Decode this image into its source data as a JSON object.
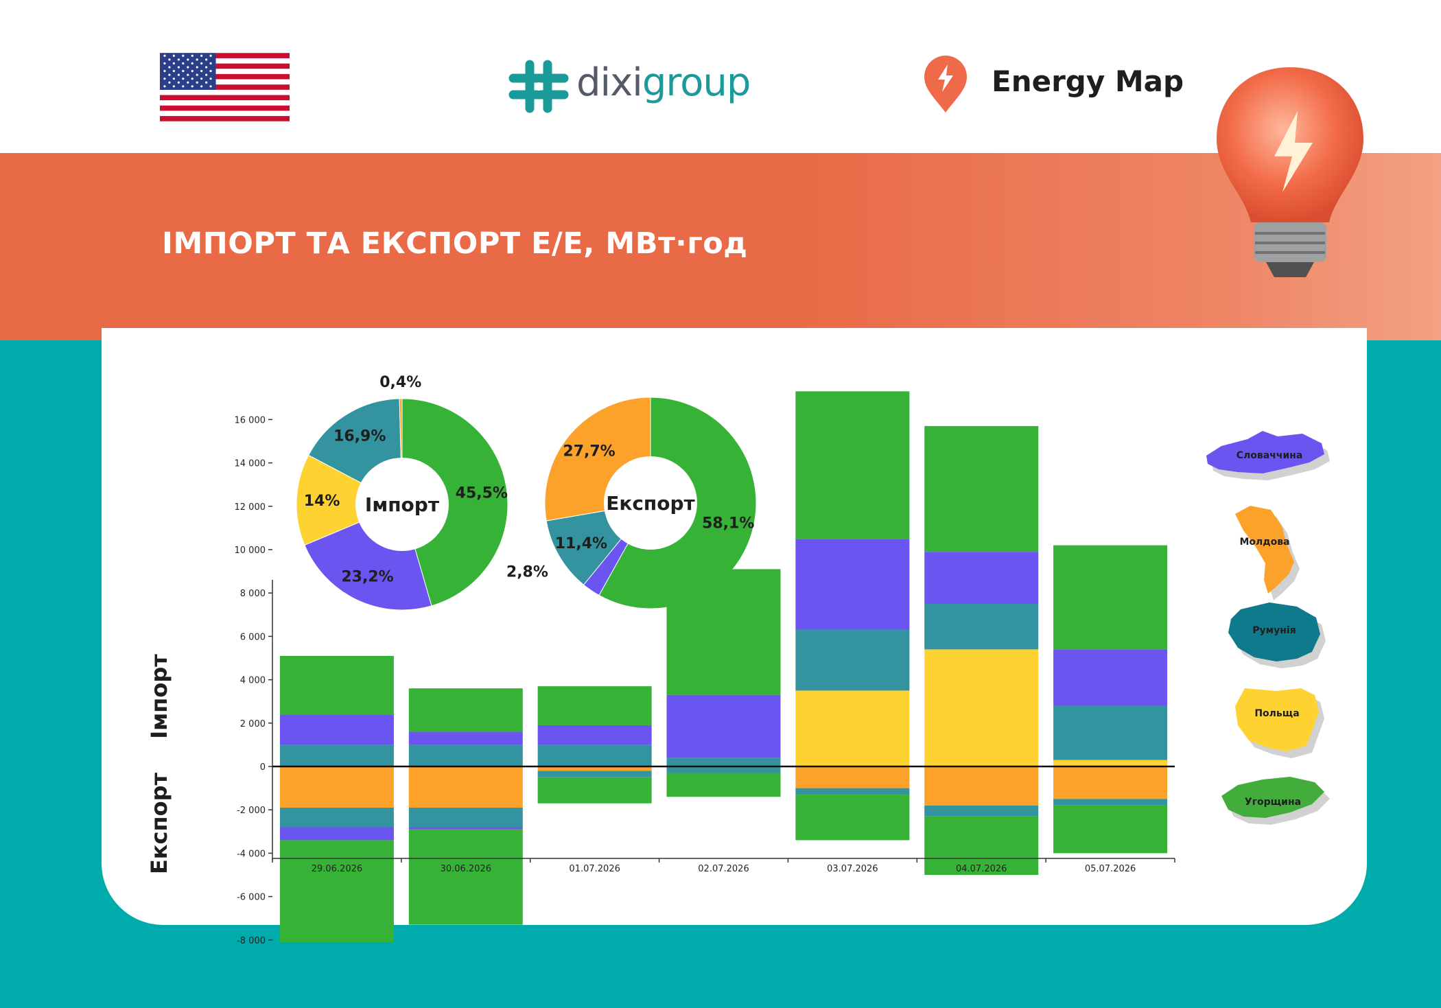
{
  "header": {
    "brand_prefix": "dixi",
    "brand_suffix": "group",
    "energy_map": "Energy Map",
    "flag_icon": "us-flag-icon",
    "logo_icon": "dixigroup-logo-icon",
    "pin_icon": "lightning-pin-icon"
  },
  "banner": {
    "title": "ІМПОРТ ТА ЕКСПОРТ Е/Е, МВт·год",
    "image_icon": "lightbulb-icon"
  },
  "colors": {
    "Словаччина": "#6b55f0",
    "Молдова": "#fca22a",
    "Румунія": "#33949f",
    "Польща": "#fdd231",
    "Угорщина": "#36b236",
    "banner": "#e96a46",
    "background": "#00acab",
    "brand": "#1a9a98"
  },
  "legend": {
    "items": [
      {
        "label": "Словаччина",
        "color": "#6b55f0",
        "icon": "slovakia-map-icon"
      },
      {
        "label": "Молдова",
        "color": "#fca22a",
        "icon": "moldova-map-icon"
      },
      {
        "label": "Румунія",
        "color": "#0f7a8c",
        "icon": "romania-map-icon"
      },
      {
        "label": "Польща",
        "color": "#fdd231",
        "icon": "poland-map-icon"
      },
      {
        "label": "Угорщина",
        "color": "#43ad3c",
        "icon": "hungary-map-icon"
      }
    ]
  },
  "chart_data": [
    {
      "type": "pie",
      "title": "Імпорт",
      "slices": [
        {
          "name": "Угорщина",
          "value": 45.5,
          "label": "45,5%"
        },
        {
          "name": "Словаччина",
          "value": 23.2,
          "label": "23,2%"
        },
        {
          "name": "Польща",
          "value": 14.0,
          "label": "14%"
        },
        {
          "name": "Румунія",
          "value": 16.9,
          "label": "16,9%"
        },
        {
          "name": "Молдова",
          "value": 0.4,
          "label": "0,4%"
        }
      ]
    },
    {
      "type": "pie",
      "title": "Експорт",
      "slices": [
        {
          "name": "Угорщина",
          "value": 58.1,
          "label": "58,1%"
        },
        {
          "name": "Словаччина",
          "value": 2.8,
          "label": "2,8%"
        },
        {
          "name": "Румунія",
          "value": 11.4,
          "label": "11,4%"
        },
        {
          "name": "Молдова",
          "value": 27.7,
          "label": "27,7%"
        }
      ]
    },
    {
      "type": "bar",
      "stacked": true,
      "ylabel_import": "Імпорт",
      "ylabel_export": "Експорт",
      "categories": [
        "29.06.2026",
        "30.06.2026",
        "01.07.2026",
        "02.07.2026",
        "03.07.2026",
        "04.07.2026",
        "05.07.2026"
      ],
      "ylim": [
        -8000,
        17000
      ],
      "yticks": [
        {
          "v": 16000,
          "label": "16 000"
        },
        {
          "v": 14000,
          "label": "14 000"
        },
        {
          "v": 12000,
          "label": "12 000"
        },
        {
          "v": 10000,
          "label": "10 000"
        },
        {
          "v": 8000,
          "label": "8 000"
        },
        {
          "v": 6000,
          "label": "6 000"
        },
        {
          "v": 4000,
          "label": "4 000"
        },
        {
          "v": 2000,
          "label": "2 000"
        },
        {
          "v": 0,
          "label": "0"
        },
        {
          "v": -2000,
          "label": "-2 000"
        },
        {
          "v": -4000,
          "label": "-4 000"
        },
        {
          "v": -6000,
          "label": "-6 000"
        },
        {
          "v": -8000,
          "label": "-8 000"
        }
      ],
      "import_series": [
        {
          "name": "Польща",
          "values": [
            0,
            0,
            0,
            0,
            3500,
            5400,
            300
          ]
        },
        {
          "name": "Румунія",
          "values": [
            1000,
            1000,
            1000,
            400,
            2800,
            2100,
            2500
          ]
        },
        {
          "name": "Словаччина",
          "values": [
            1400,
            600,
            900,
            2900,
            4200,
            2400,
            2600
          ]
        },
        {
          "name": "Угорщина",
          "values": [
            2700,
            2000,
            1800,
            5800,
            6800,
            5800,
            4800
          ]
        }
      ],
      "export_series": [
        {
          "name": "Молдова",
          "values": [
            -1900,
            -1900,
            -200,
            0,
            -1000,
            -1800,
            -1500
          ]
        },
        {
          "name": "Румунія",
          "values": [
            -900,
            -900,
            -300,
            -300,
            -300,
            -500,
            -300
          ]
        },
        {
          "name": "Словаччина",
          "values": [
            -600,
            -100,
            0,
            0,
            0,
            0,
            0
          ]
        },
        {
          "name": "Угорщина",
          "values": [
            -4700,
            -4400,
            -1200,
            -1100,
            -2100,
            -2700,
            -2200
          ]
        }
      ]
    }
  ]
}
